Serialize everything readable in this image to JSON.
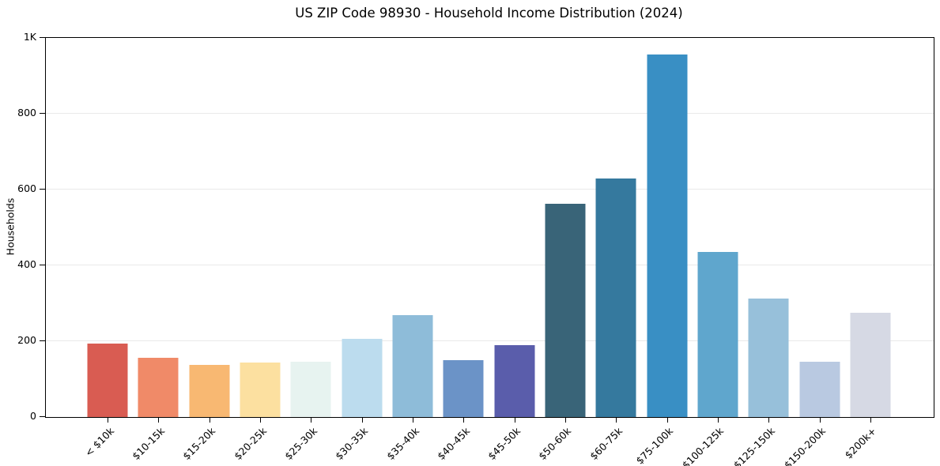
{
  "page": {
    "background": "#ffffff"
  },
  "chart": {
    "title": "US ZIP Code 98930 - Household Income Distribution (2024)",
    "ylabel": "Households"
  },
  "chart_data": {
    "type": "bar",
    "title": "US ZIP Code 98930 - Household Income Distribution (2024)",
    "xlabel": "",
    "ylabel": "Households",
    "ylim": [
      0,
      1000
    ],
    "grid": "horizontal",
    "grid_color": "#e9e9e9",
    "legend": "none",
    "yticks": [
      {
        "value": 0,
        "label": "0"
      },
      {
        "value": 200,
        "label": "200"
      },
      {
        "value": 400,
        "label": "400"
      },
      {
        "value": 600,
        "label": "600"
      },
      {
        "value": 800,
        "label": "800"
      },
      {
        "value": 1000,
        "label": "1K"
      }
    ],
    "categories": [
      "< $10k",
      "$10-15k",
      "$15-20k",
      "$20-25k",
      "$25-30k",
      "$30-35k",
      "$35-40k",
      "$40-45k",
      "$45-50k",
      "$50-60k",
      "$60-75k",
      "$75-100k",
      "$100-125k",
      "$125-150k",
      "$150-200k",
      "$200k+"
    ],
    "values": [
      193,
      157,
      137,
      143,
      146,
      207,
      268,
      149,
      189,
      562,
      629,
      956,
      436,
      313,
      146,
      275
    ],
    "bar_colors": [
      "#d95c52",
      "#f08a68",
      "#f8b872",
      "#fce0a0",
      "#e7f3f0",
      "#bcdcee",
      "#8ebcd9",
      "#6b93c7",
      "#5a5dab",
      "#396478",
      "#35799e",
      "#398fc4",
      "#5fa6cd",
      "#97c0da",
      "#b9c9e1",
      "#d6d9e4"
    ]
  },
  "colors": {
    "axis": "#000000",
    "text": "#000000",
    "background": "#ffffff"
  }
}
